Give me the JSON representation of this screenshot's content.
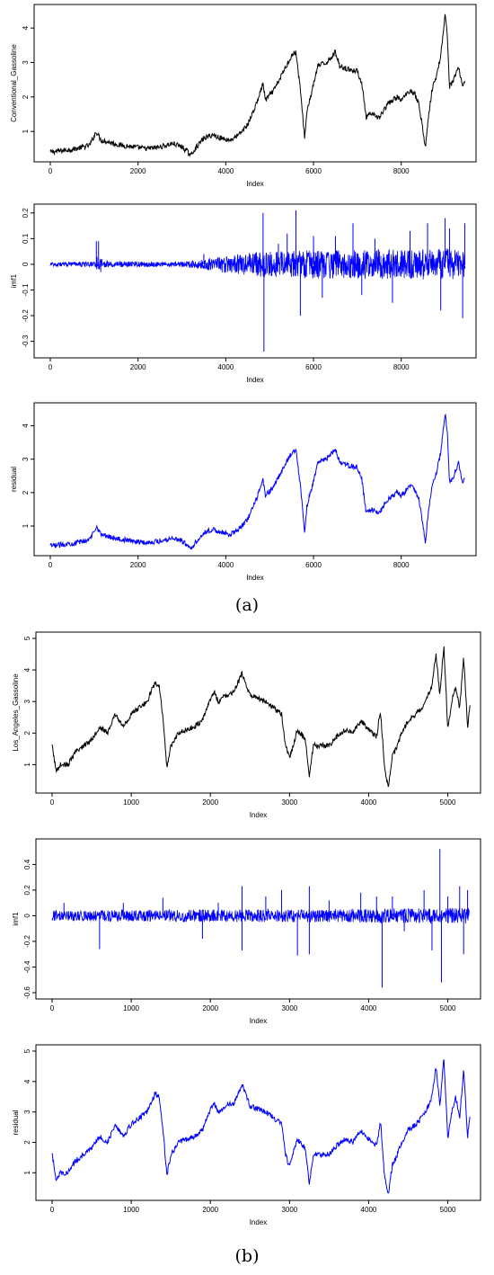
{
  "figure_labels": {
    "a": "(a)",
    "b": "(b)"
  },
  "chart_data": [
    {
      "type": "line",
      "xlabel": "Index",
      "ylabel": "Conventional_Gassoline",
      "xlim": [
        0,
        9500
      ],
      "ylim": [
        0.3,
        4.5
      ],
      "xticks": [
        0,
        2000,
        4000,
        6000,
        8000
      ],
      "yticks": [
        1,
        2,
        3,
        4
      ],
      "color": "#000000",
      "x": [
        0,
        300,
        600,
        900,
        1050,
        1150,
        1300,
        1600,
        1900,
        2200,
        2500,
        2800,
        3000,
        3100,
        3200,
        3300,
        3500,
        3700,
        3900,
        4100,
        4300,
        4500,
        4700,
        4850,
        4900,
        5100,
        5300,
        5500,
        5600,
        5700,
        5800,
        5850,
        5950,
        6100,
        6300,
        6500,
        6600,
        6800,
        7000,
        7100,
        7200,
        7300,
        7500,
        7700,
        7900,
        8000,
        8200,
        8300,
        8400,
        8500,
        8550,
        8600,
        8700,
        8800,
        8900,
        9000,
        9050,
        9100,
        9200,
        9300,
        9400,
        9450
      ],
      "values": [
        0.4,
        0.45,
        0.5,
        0.6,
        1.0,
        0.75,
        0.7,
        0.6,
        0.55,
        0.5,
        0.55,
        0.65,
        0.55,
        0.45,
        0.3,
        0.5,
        0.8,
        0.9,
        0.8,
        0.75,
        0.9,
        1.2,
        1.8,
        2.4,
        1.9,
        2.2,
        2.7,
        3.2,
        3.3,
        2.2,
        0.8,
        1.6,
        2.1,
        2.9,
        3.0,
        3.3,
        2.9,
        2.8,
        2.75,
        2.4,
        1.4,
        1.5,
        1.4,
        1.8,
        2.0,
        1.9,
        2.2,
        2.1,
        1.8,
        1.0,
        0.5,
        1.2,
        2.2,
        2.6,
        3.2,
        4.4,
        3.8,
        2.3,
        2.5,
        2.9,
        2.3,
        2.5
      ]
    },
    {
      "type": "line",
      "xlabel": "Index",
      "ylabel": "imf1",
      "xlim": [
        0,
        9500
      ],
      "ylim": [
        -0.34,
        0.21
      ],
      "xticks": [
        0,
        2000,
        4000,
        6000,
        8000
      ],
      "yticks": [
        -0.3,
        -0.2,
        -0.1,
        0.0,
        0.1,
        0.2
      ],
      "color": "#0000ff",
      "noise_envelope": {
        "x": [
          0,
          1000,
          1100,
          1200,
          3000,
          3500,
          4000,
          4800,
          6000,
          8800,
          9000,
          9300,
          9500
        ],
        "amplitude": [
          0.008,
          0.01,
          0.045,
          0.012,
          0.01,
          0.02,
          0.035,
          0.05,
          0.055,
          0.06,
          0.07,
          0.055,
          0.05
        ]
      },
      "spikes": [
        [
          1050,
          0.09
        ],
        [
          1100,
          0.09
        ],
        [
          1150,
          -0.03
        ],
        [
          3500,
          0.04
        ],
        [
          4850,
          0.2
        ],
        [
          4870,
          -0.34
        ],
        [
          5200,
          0.08
        ],
        [
          5400,
          0.12
        ],
        [
          5600,
          0.21
        ],
        [
          5700,
          -0.2
        ],
        [
          6000,
          0.11
        ],
        [
          6200,
          -0.13
        ],
        [
          6500,
          0.11
        ],
        [
          6900,
          0.16
        ],
        [
          7100,
          -0.12
        ],
        [
          7400,
          0.1
        ],
        [
          7800,
          -0.15
        ],
        [
          8200,
          0.13
        ],
        [
          8600,
          0.16
        ],
        [
          8900,
          -0.18
        ],
        [
          9000,
          0.18
        ],
        [
          9100,
          0.14
        ],
        [
          9400,
          -0.21
        ],
        [
          9450,
          0.16
        ]
      ]
    },
    {
      "type": "line",
      "xlabel": "Index",
      "ylabel": "residual",
      "xlim": [
        0,
        9500
      ],
      "ylim": [
        0.3,
        4.5
      ],
      "xticks": [
        0,
        2000,
        4000,
        6000,
        8000
      ],
      "yticks": [
        1,
        2,
        3,
        4
      ],
      "color": "#0000ff",
      "x": [
        0,
        300,
        600,
        900,
        1050,
        1150,
        1300,
        1600,
        1900,
        2200,
        2500,
        2800,
        3000,
        3100,
        3200,
        3300,
        3500,
        3700,
        3900,
        4100,
        4300,
        4500,
        4700,
        4850,
        4900,
        5100,
        5300,
        5500,
        5600,
        5700,
        5800,
        5850,
        5950,
        6100,
        6300,
        6500,
        6600,
        6800,
        7000,
        7100,
        7200,
        7300,
        7500,
        7700,
        7900,
        8000,
        8200,
        8300,
        8400,
        8500,
        8550,
        8600,
        8700,
        8800,
        8900,
        9000,
        9050,
        9100,
        9200,
        9300,
        9400,
        9450
      ],
      "values": [
        0.4,
        0.45,
        0.5,
        0.6,
        1.0,
        0.75,
        0.7,
        0.6,
        0.55,
        0.5,
        0.55,
        0.65,
        0.55,
        0.45,
        0.3,
        0.5,
        0.8,
        0.9,
        0.8,
        0.75,
        0.9,
        1.2,
        1.8,
        2.4,
        1.9,
        2.2,
        2.7,
        3.2,
        3.3,
        2.2,
        0.8,
        1.6,
        2.1,
        2.9,
        3.0,
        3.3,
        2.9,
        2.8,
        2.75,
        2.4,
        1.4,
        1.5,
        1.4,
        1.8,
        2.0,
        1.9,
        2.2,
        2.1,
        1.8,
        1.0,
        0.5,
        1.2,
        2.2,
        2.6,
        3.2,
        4.4,
        3.8,
        2.3,
        2.5,
        2.9,
        2.3,
        2.5
      ]
    },
    {
      "type": "line",
      "xlabel": "Index",
      "ylabel": "Los_Angeles_Gassoline",
      "xlim": [
        0,
        5300
      ],
      "ylim": [
        0.3,
        5.0
      ],
      "xticks": [
        0,
        1000,
        2000,
        3000,
        4000,
        5000
      ],
      "yticks": [
        1,
        2,
        3,
        4,
        5
      ],
      "color": "#000000",
      "x": [
        0,
        50,
        100,
        200,
        300,
        400,
        500,
        600,
        700,
        800,
        900,
        1000,
        1100,
        1200,
        1300,
        1350,
        1400,
        1450,
        1500,
        1600,
        1700,
        1800,
        1900,
        2000,
        2050,
        2100,
        2200,
        2300,
        2400,
        2500,
        2600,
        2700,
        2800,
        2900,
        2950,
        3000,
        3100,
        3200,
        3250,
        3300,
        3400,
        3500,
        3600,
        3700,
        3800,
        3900,
        4000,
        4100,
        4150,
        4200,
        4250,
        4300,
        4350,
        4400,
        4500,
        4600,
        4700,
        4800,
        4850,
        4900,
        4950,
        5000,
        5050,
        5100,
        5150,
        5200,
        5250,
        5280
      ],
      "values": [
        1.6,
        0.8,
        1.0,
        1.0,
        1.4,
        1.6,
        1.8,
        2.2,
        2.0,
        2.6,
        2.2,
        2.6,
        2.8,
        3.0,
        3.6,
        3.5,
        2.5,
        0.9,
        1.6,
        2.0,
        2.1,
        2.2,
        2.4,
        3.1,
        3.3,
        3.0,
        3.2,
        3.3,
        3.9,
        3.2,
        3.1,
        3.0,
        2.8,
        2.6,
        1.6,
        1.2,
        2.1,
        1.8,
        0.6,
        1.6,
        1.6,
        1.6,
        1.9,
        2.1,
        2.0,
        2.4,
        2.1,
        1.9,
        2.7,
        0.9,
        0.3,
        1.3,
        1.5,
        1.9,
        2.4,
        2.6,
        2.9,
        3.5,
        4.5,
        3.2,
        4.8,
        2.1,
        3.0,
        3.5,
        2.8,
        4.4,
        2.2,
        2.9
      ]
    },
    {
      "type": "line",
      "xlabel": "Index",
      "ylabel": "imf1",
      "xlim": [
        0,
        5300
      ],
      "ylim": [
        -0.6,
        0.55
      ],
      "xticks": [
        0,
        1000,
        2000,
        3000,
        4000,
        5000
      ],
      "yticks": [
        -0.6,
        -0.4,
        -0.2,
        0.0,
        0.2,
        0.4
      ],
      "color": "#0000ff",
      "noise_envelope": {
        "x": [
          0,
          1000,
          2000,
          3000,
          4000,
          4800,
          5300
        ],
        "amplitude": [
          0.04,
          0.045,
          0.05,
          0.05,
          0.055,
          0.06,
          0.06
        ]
      },
      "spikes": [
        [
          150,
          0.1
        ],
        [
          600,
          -0.26
        ],
        [
          900,
          0.1
        ],
        [
          1400,
          0.14
        ],
        [
          1900,
          -0.18
        ],
        [
          2100,
          0.1
        ],
        [
          2400,
          0.23
        ],
        [
          2400,
          -0.27
        ],
        [
          2700,
          0.15
        ],
        [
          2900,
          0.2
        ],
        [
          3100,
          -0.31
        ],
        [
          3250,
          0.23
        ],
        [
          3250,
          -0.3
        ],
        [
          3500,
          0.12
        ],
        [
          3900,
          0.18
        ],
        [
          4100,
          0.15
        ],
        [
          4170,
          -0.56
        ],
        [
          4300,
          0.15
        ],
        [
          4450,
          -0.12
        ],
        [
          4700,
          0.2
        ],
        [
          4800,
          -0.27
        ],
        [
          4900,
          0.52
        ],
        [
          4920,
          -0.52
        ],
        [
          5000,
          0.15
        ],
        [
          5150,
          0.23
        ],
        [
          5200,
          -0.3
        ],
        [
          5250,
          0.2
        ]
      ]
    },
    {
      "type": "line",
      "xlabel": "Index",
      "ylabel": "residual",
      "xlim": [
        0,
        5300
      ],
      "ylim": [
        0.3,
        5.0
      ],
      "xticks": [
        0,
        1000,
        2000,
        3000,
        4000,
        5000
      ],
      "yticks": [
        1,
        2,
        3,
        4,
        5
      ],
      "color": "#0000ff",
      "x": [
        0,
        50,
        100,
        200,
        300,
        400,
        500,
        600,
        700,
        800,
        900,
        1000,
        1100,
        1200,
        1300,
        1350,
        1400,
        1450,
        1500,
        1600,
        1700,
        1800,
        1900,
        2000,
        2050,
        2100,
        2200,
        2300,
        2400,
        2500,
        2600,
        2700,
        2800,
        2900,
        2950,
        3000,
        3100,
        3200,
        3250,
        3300,
        3400,
        3500,
        3600,
        3700,
        3800,
        3900,
        4000,
        4100,
        4150,
        4200,
        4250,
        4300,
        4350,
        4400,
        4500,
        4600,
        4700,
        4800,
        4850,
        4900,
        4950,
        5000,
        5050,
        5100,
        5150,
        5200,
        5250,
        5280
      ],
      "values": [
        1.6,
        0.8,
        1.0,
        1.0,
        1.4,
        1.6,
        1.8,
        2.2,
        2.0,
        2.6,
        2.2,
        2.6,
        2.8,
        3.0,
        3.6,
        3.5,
        2.5,
        0.9,
        1.6,
        2.0,
        2.1,
        2.2,
        2.4,
        3.1,
        3.3,
        3.0,
        3.2,
        3.3,
        3.9,
        3.2,
        3.1,
        3.0,
        2.8,
        2.6,
        1.6,
        1.2,
        2.1,
        1.8,
        0.6,
        1.6,
        1.6,
        1.6,
        1.9,
        2.1,
        2.0,
        2.4,
        2.1,
        1.9,
        2.7,
        0.9,
        0.3,
        1.3,
        1.5,
        1.9,
        2.4,
        2.6,
        2.9,
        3.5,
        4.5,
        3.2,
        4.8,
        2.1,
        3.0,
        3.5,
        2.8,
        4.4,
        2.2,
        2.9
      ]
    }
  ]
}
